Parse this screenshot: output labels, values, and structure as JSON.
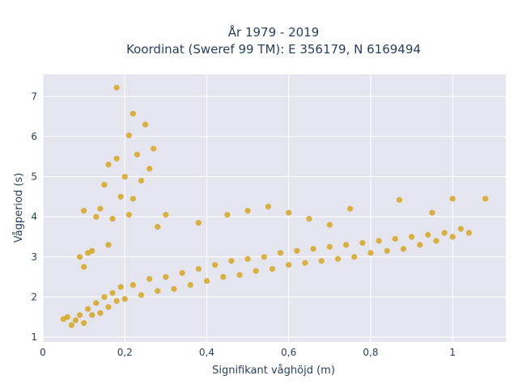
{
  "chart_data": {
    "type": "scatter",
    "title_line1": "År 1979 - 2019",
    "title_line2": "Koordinat (Sweref 99 TM): E 356179, N 6169494",
    "xlabel": "Signifikant våghöjd (m)",
    "ylabel": "Vågperiod (s)",
    "xlim": [
      0,
      1.13
    ],
    "ylim": [
      0.88,
      7.55
    ],
    "x_ticks": [
      0,
      0.2,
      0.4,
      0.6,
      0.8,
      1
    ],
    "x_tick_labels": [
      "0",
      "0,2",
      "0,4",
      "0,6",
      "0,8",
      "1"
    ],
    "y_ticks": [
      1,
      2,
      3,
      4,
      5,
      6,
      7
    ],
    "y_tick_labels": [
      "1",
      "2",
      "3",
      "4",
      "5",
      "6",
      "7"
    ],
    "grid": true,
    "marker_color": "#d4a419",
    "plot_bgcolor": "#e5e5ef",
    "points": [
      [
        0.05,
        1.45
      ],
      [
        0.06,
        1.5
      ],
      [
        0.07,
        1.3
      ],
      [
        0.08,
        1.42
      ],
      [
        0.09,
        1.55
      ],
      [
        0.1,
        1.35
      ],
      [
        0.11,
        1.7
      ],
      [
        0.12,
        1.55
      ],
      [
        0.13,
        1.85
      ],
      [
        0.14,
        1.6
      ],
      [
        0.15,
        2.0
      ],
      [
        0.16,
        1.75
      ],
      [
        0.17,
        2.1
      ],
      [
        0.18,
        1.9
      ],
      [
        0.19,
        2.25
      ],
      [
        0.2,
        1.95
      ],
      [
        0.22,
        2.3
      ],
      [
        0.24,
        2.05
      ],
      [
        0.26,
        2.45
      ],
      [
        0.28,
        2.15
      ],
      [
        0.3,
        2.5
      ],
      [
        0.32,
        2.2
      ],
      [
        0.34,
        2.6
      ],
      [
        0.36,
        2.3
      ],
      [
        0.38,
        2.7
      ],
      [
        0.4,
        2.4
      ],
      [
        0.42,
        2.8
      ],
      [
        0.44,
        2.5
      ],
      [
        0.46,
        2.9
      ],
      [
        0.48,
        2.55
      ],
      [
        0.5,
        2.95
      ],
      [
        0.52,
        2.65
      ],
      [
        0.54,
        3.0
      ],
      [
        0.56,
        2.7
      ],
      [
        0.58,
        3.1
      ],
      [
        0.6,
        2.8
      ],
      [
        0.62,
        3.15
      ],
      [
        0.64,
        2.85
      ],
      [
        0.66,
        3.2
      ],
      [
        0.68,
        2.9
      ],
      [
        0.7,
        3.25
      ],
      [
        0.72,
        2.95
      ],
      [
        0.74,
        3.3
      ],
      [
        0.76,
        3.0
      ],
      [
        0.78,
        3.35
      ],
      [
        0.8,
        3.1
      ],
      [
        0.82,
        3.4
      ],
      [
        0.84,
        3.15
      ],
      [
        0.86,
        3.45
      ],
      [
        0.88,
        3.2
      ],
      [
        0.9,
        3.5
      ],
      [
        0.92,
        3.3
      ],
      [
        0.94,
        3.55
      ],
      [
        0.96,
        3.4
      ],
      [
        0.98,
        3.6
      ],
      [
        1.0,
        3.5
      ],
      [
        1.02,
        3.7
      ],
      [
        1.04,
        3.6
      ],
      [
        1.08,
        4.45
      ],
      [
        1.0,
        4.45
      ],
      [
        0.87,
        4.42
      ],
      [
        0.95,
        4.1
      ],
      [
        0.75,
        4.2
      ],
      [
        0.18,
        7.22
      ],
      [
        0.22,
        6.57
      ],
      [
        0.25,
        6.3
      ],
      [
        0.21,
        6.03
      ],
      [
        0.27,
        5.7
      ],
      [
        0.23,
        5.55
      ],
      [
        0.18,
        5.45
      ],
      [
        0.26,
        5.2
      ],
      [
        0.16,
        5.3
      ],
      [
        0.2,
        5.0
      ],
      [
        0.24,
        4.9
      ],
      [
        0.15,
        4.8
      ],
      [
        0.19,
        4.5
      ],
      [
        0.22,
        4.45
      ],
      [
        0.14,
        4.2
      ],
      [
        0.1,
        4.15
      ],
      [
        0.13,
        4.0
      ],
      [
        0.17,
        3.95
      ],
      [
        0.21,
        4.05
      ],
      [
        0.11,
        3.1
      ],
      [
        0.09,
        3.0
      ],
      [
        0.1,
        2.75
      ],
      [
        0.12,
        3.15
      ],
      [
        0.16,
        3.3
      ],
      [
        0.3,
        4.05
      ],
      [
        0.28,
        3.75
      ],
      [
        0.38,
        3.85
      ],
      [
        0.45,
        4.05
      ],
      [
        0.5,
        4.15
      ],
      [
        0.55,
        4.25
      ],
      [
        0.6,
        4.1
      ],
      [
        0.65,
        3.95
      ],
      [
        0.7,
        3.8
      ]
    ]
  }
}
